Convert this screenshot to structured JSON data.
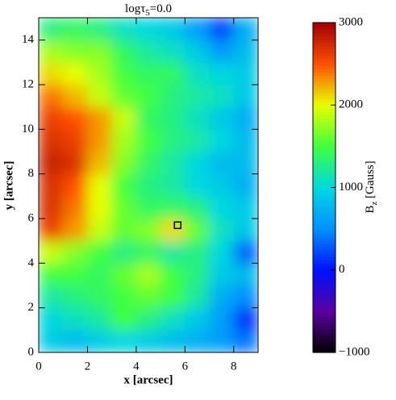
{
  "chart_data": {
    "type": "heatmap",
    "title_main": "logτ",
    "title_sub": "5",
    "title_rest": "=0.0",
    "x_label": "x [arcsec]",
    "y_label": "y [arcsec]",
    "colorbar_label_main": "B",
    "colorbar_label_sub": "z",
    "colorbar_label_rest": " [Gauss]",
    "xlim": [
      0,
      9
    ],
    "ylim": [
      0,
      15
    ],
    "xticks": [
      0,
      2,
      4,
      6,
      8
    ],
    "yticks": [
      0,
      2,
      4,
      6,
      8,
      10,
      12,
      14
    ],
    "x_edges": [
      0,
      1,
      2,
      3,
      4,
      5,
      6,
      7,
      8,
      9
    ],
    "y_edges": [
      0,
      1,
      2,
      3,
      4,
      5,
      6,
      7,
      8,
      9,
      10,
      11,
      12,
      13,
      14,
      15
    ],
    "z": [
      [
        900,
        800,
        900,
        1000,
        900,
        800,
        700,
        600,
        400
      ],
      [
        1000,
        1100,
        1200,
        1500,
        1300,
        1100,
        900,
        600,
        100
      ],
      [
        1200,
        1300,
        1400,
        1500,
        1600,
        1500,
        1200,
        700,
        500
      ],
      [
        1500,
        1500,
        1400,
        1600,
        1800,
        1500,
        1300,
        900,
        800
      ],
      [
        1900,
        1700,
        1500,
        1300,
        1400,
        1200,
        1300,
        1000,
        300
      ],
      [
        2600,
        2300,
        1900,
        1600,
        1700,
        2100,
        1600,
        1100,
        900
      ],
      [
        2700,
        2400,
        2000,
        1600,
        1400,
        1400,
        1300,
        1000,
        900
      ],
      [
        2700,
        2500,
        2000,
        1500,
        1300,
        1200,
        1000,
        900,
        700
      ],
      [
        2800,
        2700,
        2200,
        1700,
        1400,
        1200,
        1000,
        800,
        800
      ],
      [
        2700,
        2600,
        2300,
        1800,
        1500,
        1300,
        1200,
        1000,
        800
      ],
      [
        2600,
        2500,
        2300,
        1900,
        1400,
        1300,
        1100,
        900,
        700
      ],
      [
        2400,
        2200,
        1900,
        1600,
        1500,
        1300,
        1200,
        1100,
        900
      ],
      [
        2100,
        2000,
        1800,
        1500,
        1400,
        1400,
        1100,
        1000,
        900
      ],
      [
        1800,
        1700,
        1700,
        1400,
        1200,
        1100,
        900,
        600,
        800
      ],
      [
        1300,
        1400,
        1300,
        1100,
        1000,
        900,
        600,
        200,
        700
      ]
    ],
    "zlim": [
      -1000,
      3000
    ],
    "zticks": [
      {
        "value": -1000,
        "label": "−1000"
      },
      0,
      1000,
      2000,
      3000
    ],
    "colorscale": [
      "#000000",
      "#5a00a0",
      "#0010ff",
      "#0090ff",
      "#00d8e0",
      "#40ff40",
      "#e8ff00",
      "#ff5000",
      "#a00000"
    ],
    "marker": {
      "x": 5.7,
      "y": 5.7
    }
  }
}
